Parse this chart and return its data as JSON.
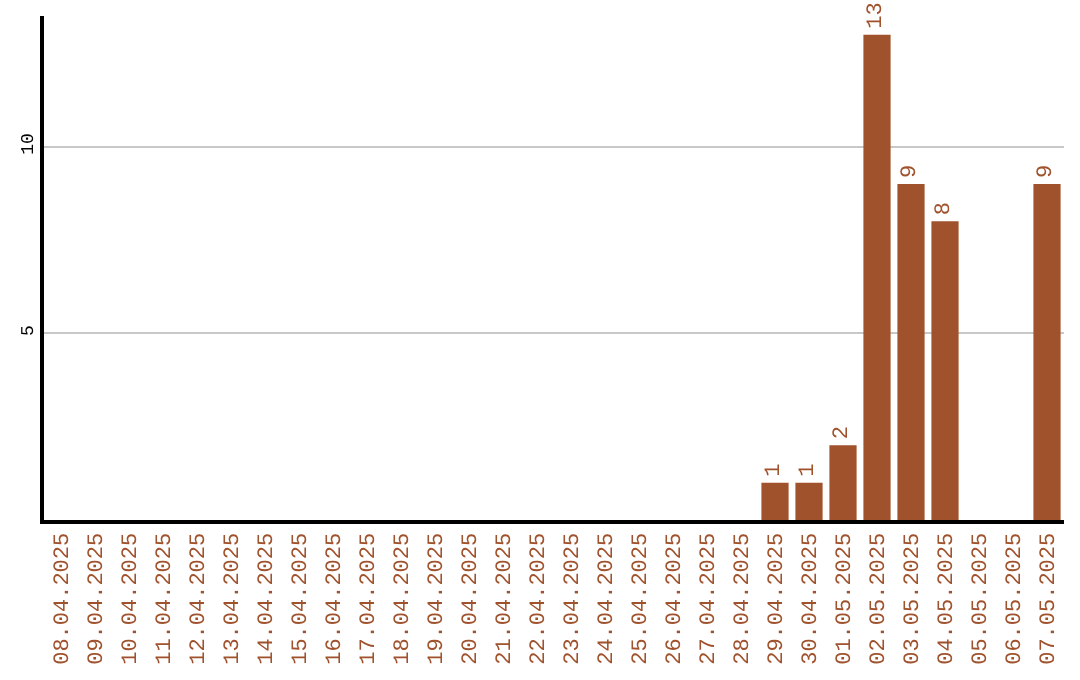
{
  "chart_data": {
    "type": "bar",
    "categories": [
      "08.04.2025",
      "09.04.2025",
      "10.04.2025",
      "11.04.2025",
      "12.04.2025",
      "13.04.2025",
      "14.04.2025",
      "15.04.2025",
      "16.04.2025",
      "17.04.2025",
      "18.04.2025",
      "19.04.2025",
      "20.04.2025",
      "21.04.2025",
      "22.04.2025",
      "23.04.2025",
      "24.04.2025",
      "25.04.2025",
      "26.04.2025",
      "27.04.2025",
      "28.04.2025",
      "29.04.2025",
      "30.04.2025",
      "01.05.2025",
      "02.05.2025",
      "03.05.2025",
      "04.05.2025",
      "05.05.2025",
      "06.05.2025",
      "07.05.2025"
    ],
    "values": [
      0,
      0,
      0,
      0,
      0,
      0,
      0,
      0,
      0,
      0,
      0,
      0,
      0,
      0,
      0,
      0,
      0,
      0,
      0,
      0,
      0,
      1,
      1,
      2,
      13,
      9,
      8,
      0,
      0,
      9
    ],
    "value_labels": [
      null,
      null,
      null,
      null,
      null,
      null,
      null,
      null,
      null,
      null,
      null,
      null,
      null,
      null,
      null,
      null,
      null,
      null,
      null,
      null,
      null,
      "1",
      "1",
      "2",
      "13",
      "9",
      "8",
      null,
      null,
      "9"
    ],
    "color": "#a0522d",
    "ylim": [
      0,
      13.5
    ],
    "yticks": [
      5,
      10
    ],
    "grid": "y",
    "legend": false
  }
}
